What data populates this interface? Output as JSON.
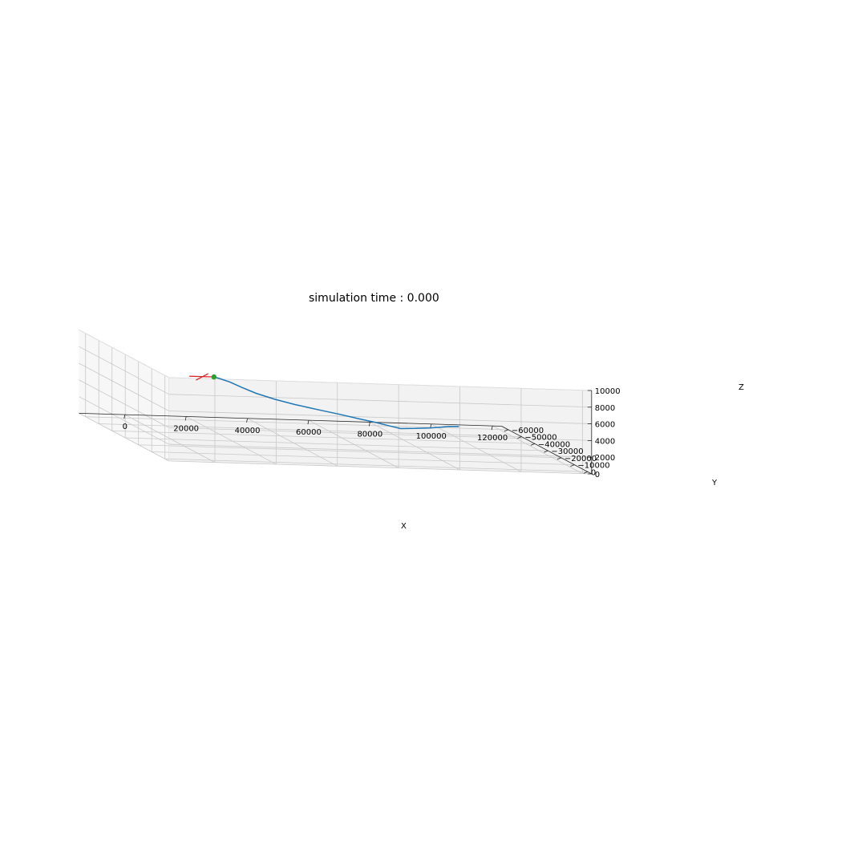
{
  "chart_data": {
    "type": "line",
    "projection": "3d",
    "title": "simulation time : 0.000",
    "xlabel": "X",
    "ylabel": "Y",
    "zlabel": "Z",
    "x_ticks": [
      0,
      20000,
      40000,
      60000,
      80000,
      100000,
      120000
    ],
    "x_tick_labels": [
      "0",
      "20000",
      "40000",
      "60000",
      "80000",
      "100000",
      "120000"
    ],
    "y_ticks": [
      0,
      -10000,
      -20000,
      -30000,
      -40000,
      -50000,
      -60000
    ],
    "y_tick_labels": [
      "0",
      "−10000",
      "−20000",
      "−30000",
      "−40000",
      "−50000",
      "−60000"
    ],
    "z_ticks": [
      0,
      2000,
      4000,
      6000,
      8000,
      10000
    ],
    "z_tick_labels": [
      "0",
      "2000",
      "4000",
      "6000",
      "8000",
      "10000"
    ],
    "xlim": [
      -15000,
      123000
    ],
    "ylim": [
      -65000,
      3000
    ],
    "zlim": [
      0,
      10000
    ],
    "grid": true,
    "trajectory": {
      "color": "#1f77b4",
      "points": [
        [
          1000,
          0,
          10000
        ],
        [
          3000,
          -500,
          9800
        ],
        [
          7000,
          -2000,
          9300
        ],
        [
          12000,
          -4500,
          8500
        ],
        [
          18000,
          -7500,
          7600
        ],
        [
          26000,
          -12000,
          6600
        ],
        [
          35000,
          -17500,
          5600
        ],
        [
          45000,
          -23500,
          4600
        ],
        [
          55000,
          -30000,
          3600
        ],
        [
          64000,
          -36000,
          2650
        ],
        [
          72000,
          -42000,
          1800
        ],
        [
          79000,
          -47500,
          1000
        ],
        [
          84000,
          -51000,
          450
        ],
        [
          90000,
          -54000,
          280
        ],
        [
          96000,
          -57000,
          160
        ],
        [
          101000,
          -60000,
          60
        ],
        [
          104500,
          -62000,
          10
        ],
        [
          108000,
          -62500,
          0
        ]
      ]
    },
    "current_position": {
      "color": "#2ca02c",
      "point": [
        1000,
        0,
        10000
      ]
    },
    "aircraft_marker": {
      "color": "#d62728",
      "segments": [
        [
          [
            -7000,
            0,
            10000
          ],
          [
            300,
            0,
            10000
          ]
        ],
        [
          [
            -4000,
            -2000,
            9400
          ],
          [
            -1500,
            1500,
            10500
          ]
        ]
      ]
    }
  }
}
